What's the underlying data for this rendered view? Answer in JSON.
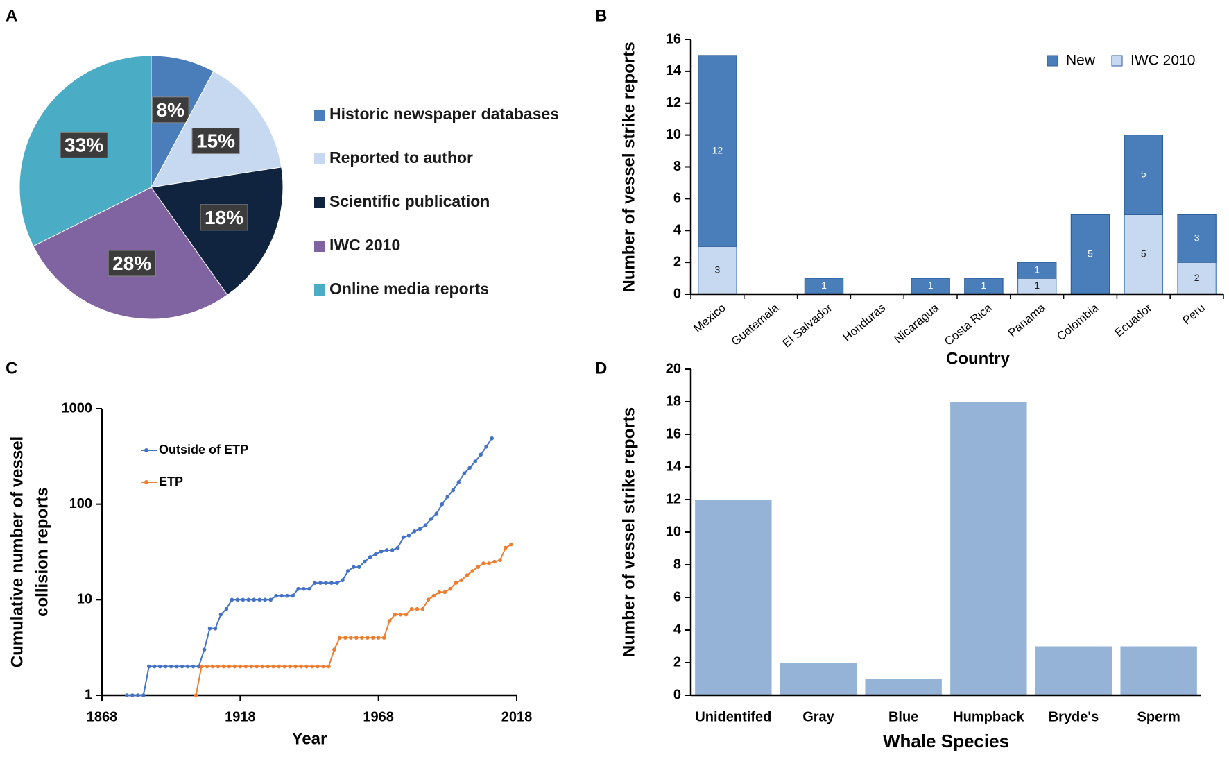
{
  "chart_data": [
    {
      "type": "pie",
      "panel_label": "A",
      "categories": [
        "Historic newspaper databases",
        "Reported to author",
        "Scientific publication",
        "IWC 2010",
        "Online media reports"
      ],
      "values": [
        8,
        15,
        18,
        28,
        33
      ],
      "value_labels": [
        "8%",
        "15%",
        "18%",
        "28%",
        "33%"
      ],
      "colors": [
        "#4a7ebb",
        "#c6d9f1",
        "#10233f",
        "#8064a2",
        "#4bacc6"
      ],
      "legend": "right"
    },
    {
      "type": "bar",
      "stacked": true,
      "panel_label": "B",
      "categories": [
        "Mexico",
        "Guatemala",
        "El Salvador",
        "Honduras",
        "Nicaragua",
        "Costa Rica",
        "Panama",
        "Colombia",
        "Ecuador",
        "Peru"
      ],
      "series": [
        {
          "name": "IWC 2010",
          "color": "#c6d9f1",
          "values": [
            3,
            0,
            0,
            0,
            0,
            0,
            1,
            0,
            5,
            2
          ]
        },
        {
          "name": "New",
          "color": "#4a7ebb",
          "values": [
            12,
            0,
            1,
            0,
            1,
            1,
            1,
            5,
            5,
            3
          ]
        }
      ],
      "ylim": [
        0,
        16
      ],
      "yticks": [
        0,
        2,
        4,
        6,
        8,
        10,
        12,
        14,
        16
      ],
      "x_label": "Country",
      "y_label": "Number of vessel strike reports",
      "legend": "upper right",
      "data_labels": true
    },
    {
      "type": "line",
      "panel_label": "C",
      "log_y": true,
      "series": [
        {
          "name": "Outside of ETP",
          "color": "#4472c4",
          "x": [
            1877,
            1879,
            1881,
            1883,
            1885,
            1887,
            1889,
            1891,
            1893,
            1895,
            1897,
            1899,
            1901,
            1903,
            1905,
            1907,
            1909,
            1911,
            1913,
            1915,
            1917,
            1919,
            1921,
            1923,
            1925,
            1927,
            1929,
            1931,
            1933,
            1935,
            1937,
            1939,
            1941,
            1943,
            1945,
            1947,
            1949,
            1951,
            1953,
            1955,
            1957,
            1959,
            1961,
            1963,
            1965,
            1967,
            1969,
            1971,
            1973,
            1975,
            1977,
            1979,
            1981,
            1983,
            1985,
            1987,
            1989,
            1991,
            1993,
            1995,
            1997,
            1999,
            2001,
            2003,
            2005,
            2007,
            2009
          ],
          "values": [
            1,
            1,
            1,
            1,
            2,
            2,
            2,
            2,
            2,
            2,
            2,
            2,
            2,
            2,
            3,
            5,
            5,
            7,
            8,
            10,
            10,
            10,
            10,
            10,
            10,
            10,
            10,
            11,
            11,
            11,
            11,
            13,
            13,
            13,
            15,
            15,
            15,
            15,
            15,
            16,
            20,
            22,
            22,
            25,
            28,
            30,
            32,
            33,
            33,
            35,
            45,
            47,
            52,
            55,
            60,
            70,
            80,
            100,
            120,
            140,
            170,
            210,
            240,
            280,
            330,
            400,
            490
          ]
        },
        {
          "name": "ETP",
          "color": "#ed7d31",
          "x": [
            1902,
            1904,
            1906,
            1908,
            1910,
            1912,
            1914,
            1916,
            1918,
            1920,
            1922,
            1924,
            1926,
            1928,
            1930,
            1932,
            1934,
            1936,
            1938,
            1940,
            1942,
            1944,
            1946,
            1948,
            1950,
            1952,
            1954,
            1956,
            1958,
            1960,
            1962,
            1964,
            1966,
            1968,
            1970,
            1972,
            1974,
            1976,
            1978,
            1980,
            1982,
            1984,
            1986,
            1988,
            1990,
            1992,
            1994,
            1996,
            1998,
            2000,
            2002,
            2004,
            2006,
            2008,
            2010,
            2012,
            2014,
            2016
          ],
          "values": [
            1,
            2,
            2,
            2,
            2,
            2,
            2,
            2,
            2,
            2,
            2,
            2,
            2,
            2,
            2,
            2,
            2,
            2,
            2,
            2,
            2,
            2,
            2,
            2,
            2,
            3,
            4,
            4,
            4,
            4,
            4,
            4,
            4,
            4,
            4,
            6,
            7,
            7,
            7,
            8,
            8,
            8,
            10,
            11,
            12,
            12,
            13,
            15,
            16,
            18,
            20,
            22,
            24,
            24,
            25,
            26,
            35,
            38
          ]
        }
      ],
      "xlim": [
        1868,
        2018
      ],
      "xticks": [
        1868,
        1918,
        1968,
        2018
      ],
      "ylim": [
        1,
        1000
      ],
      "yticks": [
        1,
        10,
        100,
        1000
      ],
      "x_label": "Year",
      "y_label": [
        "Cumulative number of vessel",
        "collision reports"
      ],
      "legend": "upper left"
    },
    {
      "type": "bar",
      "panel_label": "D",
      "categories": [
        "Unidentifed",
        "Gray",
        "Blue",
        "Humpback",
        "Bryde's",
        "Sperm"
      ],
      "values": [
        12,
        2,
        1,
        18,
        3,
        3
      ],
      "color": "#95b3d7",
      "ylim": [
        0,
        20
      ],
      "yticks": [
        0,
        2,
        4,
        6,
        8,
        10,
        12,
        14,
        16,
        18,
        20
      ],
      "x_label": "Whale Species",
      "y_label": "Number of vessel strike reports"
    }
  ]
}
